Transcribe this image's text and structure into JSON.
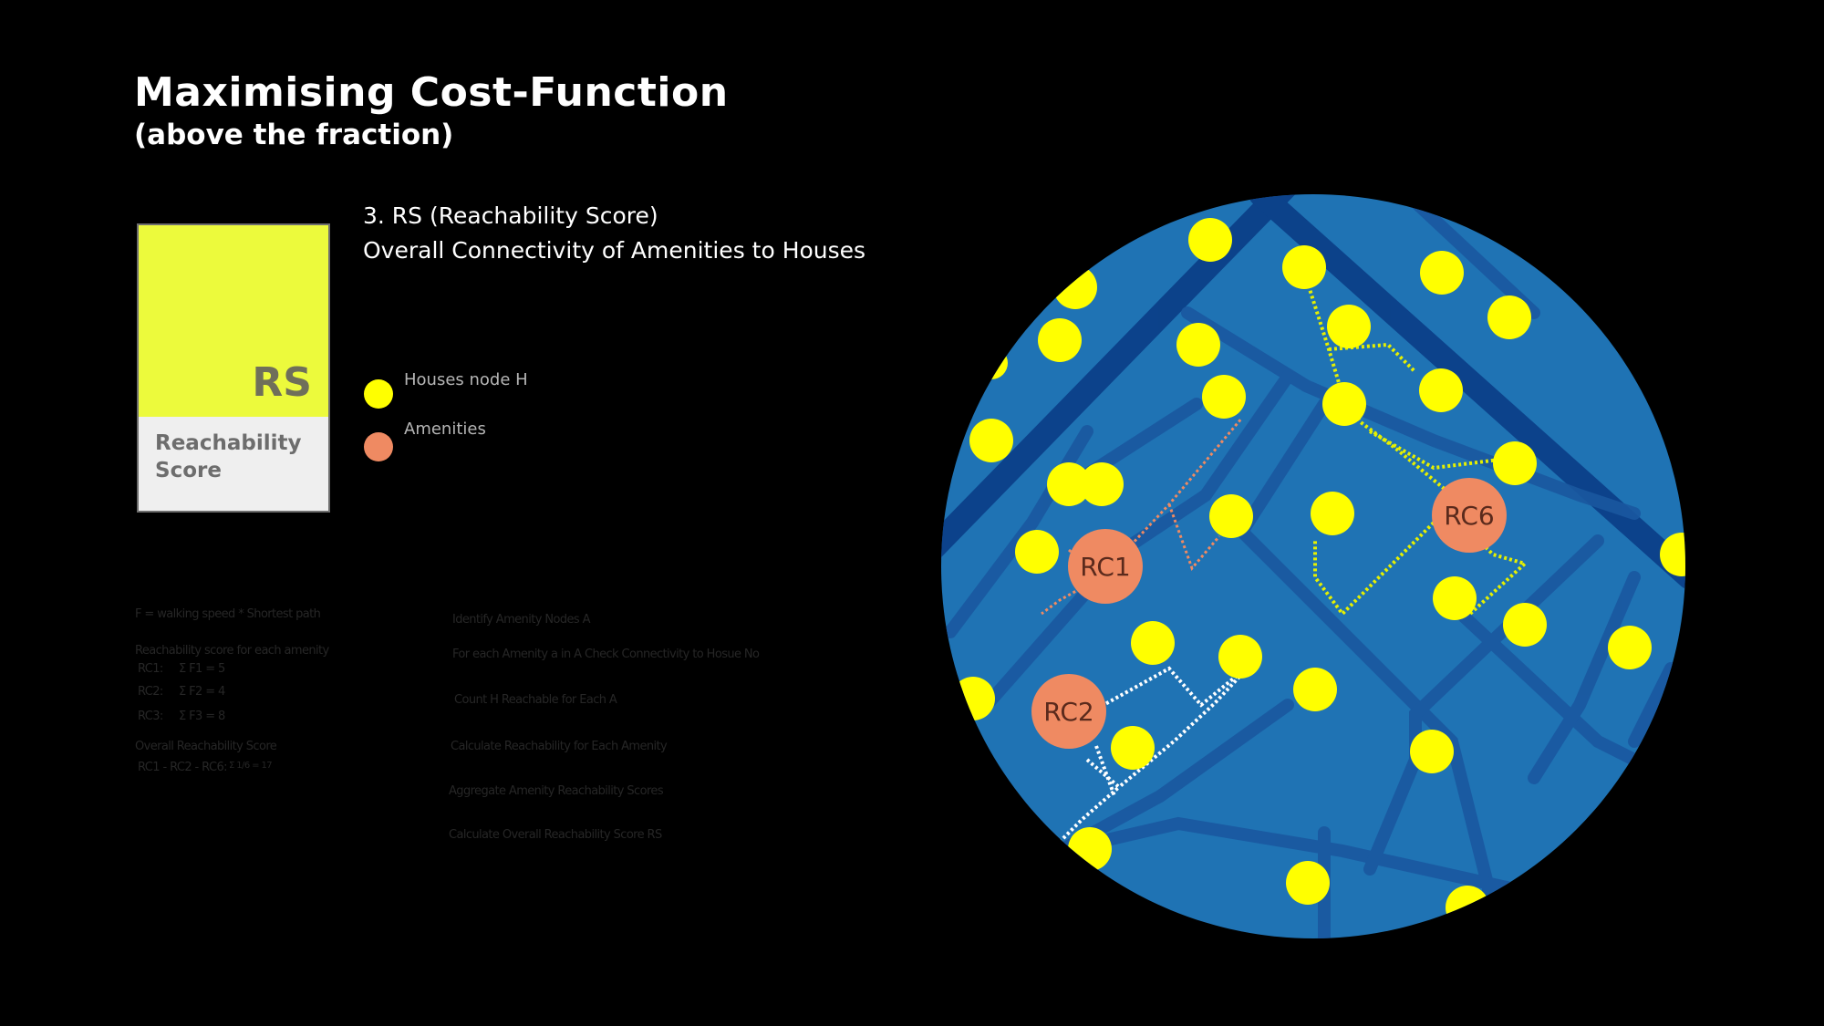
{
  "header": {
    "title": "Maximising Cost-Function",
    "subtitle": "(above the fraction)"
  },
  "card": {
    "abbr": "RS",
    "name": "Reachability Score",
    "top_color": "#ecfa3c",
    "bottom_color": "#efefef"
  },
  "description": {
    "line1": "3. RS  (Reachability Score)",
    "line2": "Overall Connectivity of Amenities to Houses"
  },
  "legend": [
    {
      "label": "Houses node H",
      "color": "#ffff00"
    },
    {
      "label": "Amenities",
      "color": "#ef8a62"
    }
  ],
  "formula_notes": [
    "F = walking speed * Shortest path",
    "Reachability score for each amenity",
    "RC1:",
    "Σ F1 = 5",
    "RC2:",
    "Σ F2 = 4",
    "RC3:",
    "Σ F3 = 8",
    "Overall Reachability Score",
    "RC1 - RC2 - RC6:",
    "Σ 1/6 = 17"
  ],
  "steps": [
    "Identify Amenity Nodes A",
    "For each Amenity a in A Check Connectivity to Hosue No",
    "Count H Reachable for Each A",
    "Calculate Reachability for Each Amenity",
    "Aggregate Amenity Reachability Scores",
    "Calculate Overall Reachability Score RS"
  ],
  "map": {
    "background_color": "#1f73b4",
    "road_color": "#0a3d86",
    "house_color": "#ffff00",
    "amenity_color": "#ef8a62",
    "amenities": [
      {
        "label": "RC1"
      },
      {
        "label": "RC2"
      },
      {
        "label": "RC6"
      }
    ]
  }
}
